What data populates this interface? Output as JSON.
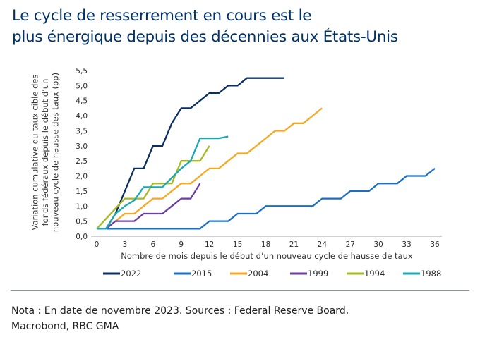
{
  "title": {
    "line1": "Le cycle de resserrement en cours est le",
    "line2": "plus énergique depuis des décennies aux États-Unis"
  },
  "note": {
    "line1": "Nota : En date de novembre 2023. Sources : Federal Reserve Board,",
    "line2": "Macrobond, RBC GMA"
  },
  "chart_data": {
    "type": "line",
    "title": "Le cycle de resserrement en cours est le plus énergique depuis des décennies aux États-Unis",
    "xlabel": "Nombre de mois depuis le début d’un nouveau cycle de hausse de taux",
    "ylabel_lines": [
      "Variation cumulative du taux cible des",
      "fonds fédéraux depuis le début d’un",
      "nouveau cycle de hausse des taux (pp)"
    ],
    "xlim": [
      0,
      36
    ],
    "ylim": [
      0,
      5.5
    ],
    "xticks": [
      0,
      3,
      6,
      9,
      12,
      15,
      18,
      21,
      24,
      27,
      30,
      33,
      36
    ],
    "xtick_labels": [
      "0",
      "3",
      "6",
      "9",
      "12",
      "15",
      "18",
      "21",
      "24",
      "27",
      "30",
      "33",
      "36"
    ],
    "yticks": [
      0,
      0.5,
      1,
      1.5,
      2,
      2.5,
      3,
      3.5,
      4,
      4.5,
      5,
      5.5
    ],
    "ytick_labels": [
      "0,0",
      "0,5",
      "1,0",
      "1,5",
      "2,0",
      "2,5",
      "3,0",
      "3,5",
      "4,0",
      "4,5",
      "5,0",
      "5,5"
    ],
    "grid": false,
    "legend_position": "bottom",
    "series": [
      {
        "name": "2022",
        "color": "#0b2f5e",
        "x": [
          0,
          1,
          2,
          3,
          4,
          5,
          6,
          7,
          8,
          9,
          10,
          11,
          12,
          13,
          14,
          15,
          16,
          17,
          18,
          19,
          20
        ],
        "values": [
          0.25,
          0.25,
          0.75,
          1.5,
          2.25,
          2.25,
          3.0,
          3.0,
          3.75,
          4.25,
          4.25,
          4.5,
          4.75,
          4.75,
          5.0,
          5.0,
          5.25,
          5.25,
          5.25,
          5.25,
          5.25
        ]
      },
      {
        "name": "2015",
        "color": "#1a6fc2",
        "x": [
          0,
          1,
          2,
          3,
          4,
          5,
          6,
          7,
          8,
          9,
          10,
          11,
          12,
          13,
          14,
          15,
          16,
          17,
          18,
          19,
          20,
          21,
          22,
          23,
          24,
          25,
          26,
          27,
          28,
          29,
          30,
          31,
          32,
          33,
          34,
          35,
          36
        ],
        "values": [
          0.25,
          0.25,
          0.25,
          0.25,
          0.25,
          0.25,
          0.25,
          0.25,
          0.25,
          0.25,
          0.25,
          0.25,
          0.5,
          0.5,
          0.5,
          0.75,
          0.75,
          0.75,
          1.0,
          1.0,
          1.0,
          1.0,
          1.0,
          1.0,
          1.25,
          1.25,
          1.25,
          1.5,
          1.5,
          1.5,
          1.75,
          1.75,
          1.75,
          2.0,
          2.0,
          2.0,
          2.25
        ]
      },
      {
        "name": "2004",
        "color": "#f7a823",
        "x": [
          1,
          2,
          3,
          4,
          5,
          6,
          7,
          8,
          9,
          10,
          11,
          12,
          13,
          14,
          15,
          16,
          17,
          18,
          19,
          20,
          21,
          22,
          23,
          24
        ],
        "values": [
          0.25,
          0.5,
          0.75,
          0.75,
          1.0,
          1.25,
          1.25,
          1.5,
          1.75,
          1.75,
          2.0,
          2.25,
          2.25,
          2.5,
          2.75,
          2.75,
          3.0,
          3.25,
          3.5,
          3.5,
          3.75,
          3.75,
          4.0,
          4.25
        ]
      },
      {
        "name": "1999",
        "color": "#6b3fa0",
        "x": [
          1,
          2,
          3,
          4,
          5,
          6,
          7,
          8,
          9,
          10,
          11
        ],
        "values": [
          0.25,
          0.5,
          0.5,
          0.5,
          0.75,
          0.75,
          0.75,
          1.0,
          1.25,
          1.25,
          1.75
        ]
      },
      {
        "name": "1994",
        "color": "#a8b820",
        "x": [
          0,
          1,
          2,
          3,
          4,
          5,
          6,
          7,
          8,
          9,
          10,
          11,
          12
        ],
        "values": [
          0.25,
          0.58,
          0.92,
          1.25,
          1.25,
          1.25,
          1.75,
          1.75,
          1.75,
          2.5,
          2.5,
          2.5,
          3.0
        ]
      },
      {
        "name": "1988",
        "color": "#1aa8b5",
        "x": [
          0,
          1,
          2,
          3,
          4,
          5,
          6,
          7,
          8,
          9,
          10,
          11,
          12,
          13,
          14
        ],
        "values": [
          0.25,
          0.25,
          0.75,
          1.0,
          1.19,
          1.63,
          1.63,
          1.63,
          1.94,
          2.25,
          2.5,
          3.25,
          3.25,
          3.25,
          3.31
        ]
      }
    ]
  }
}
